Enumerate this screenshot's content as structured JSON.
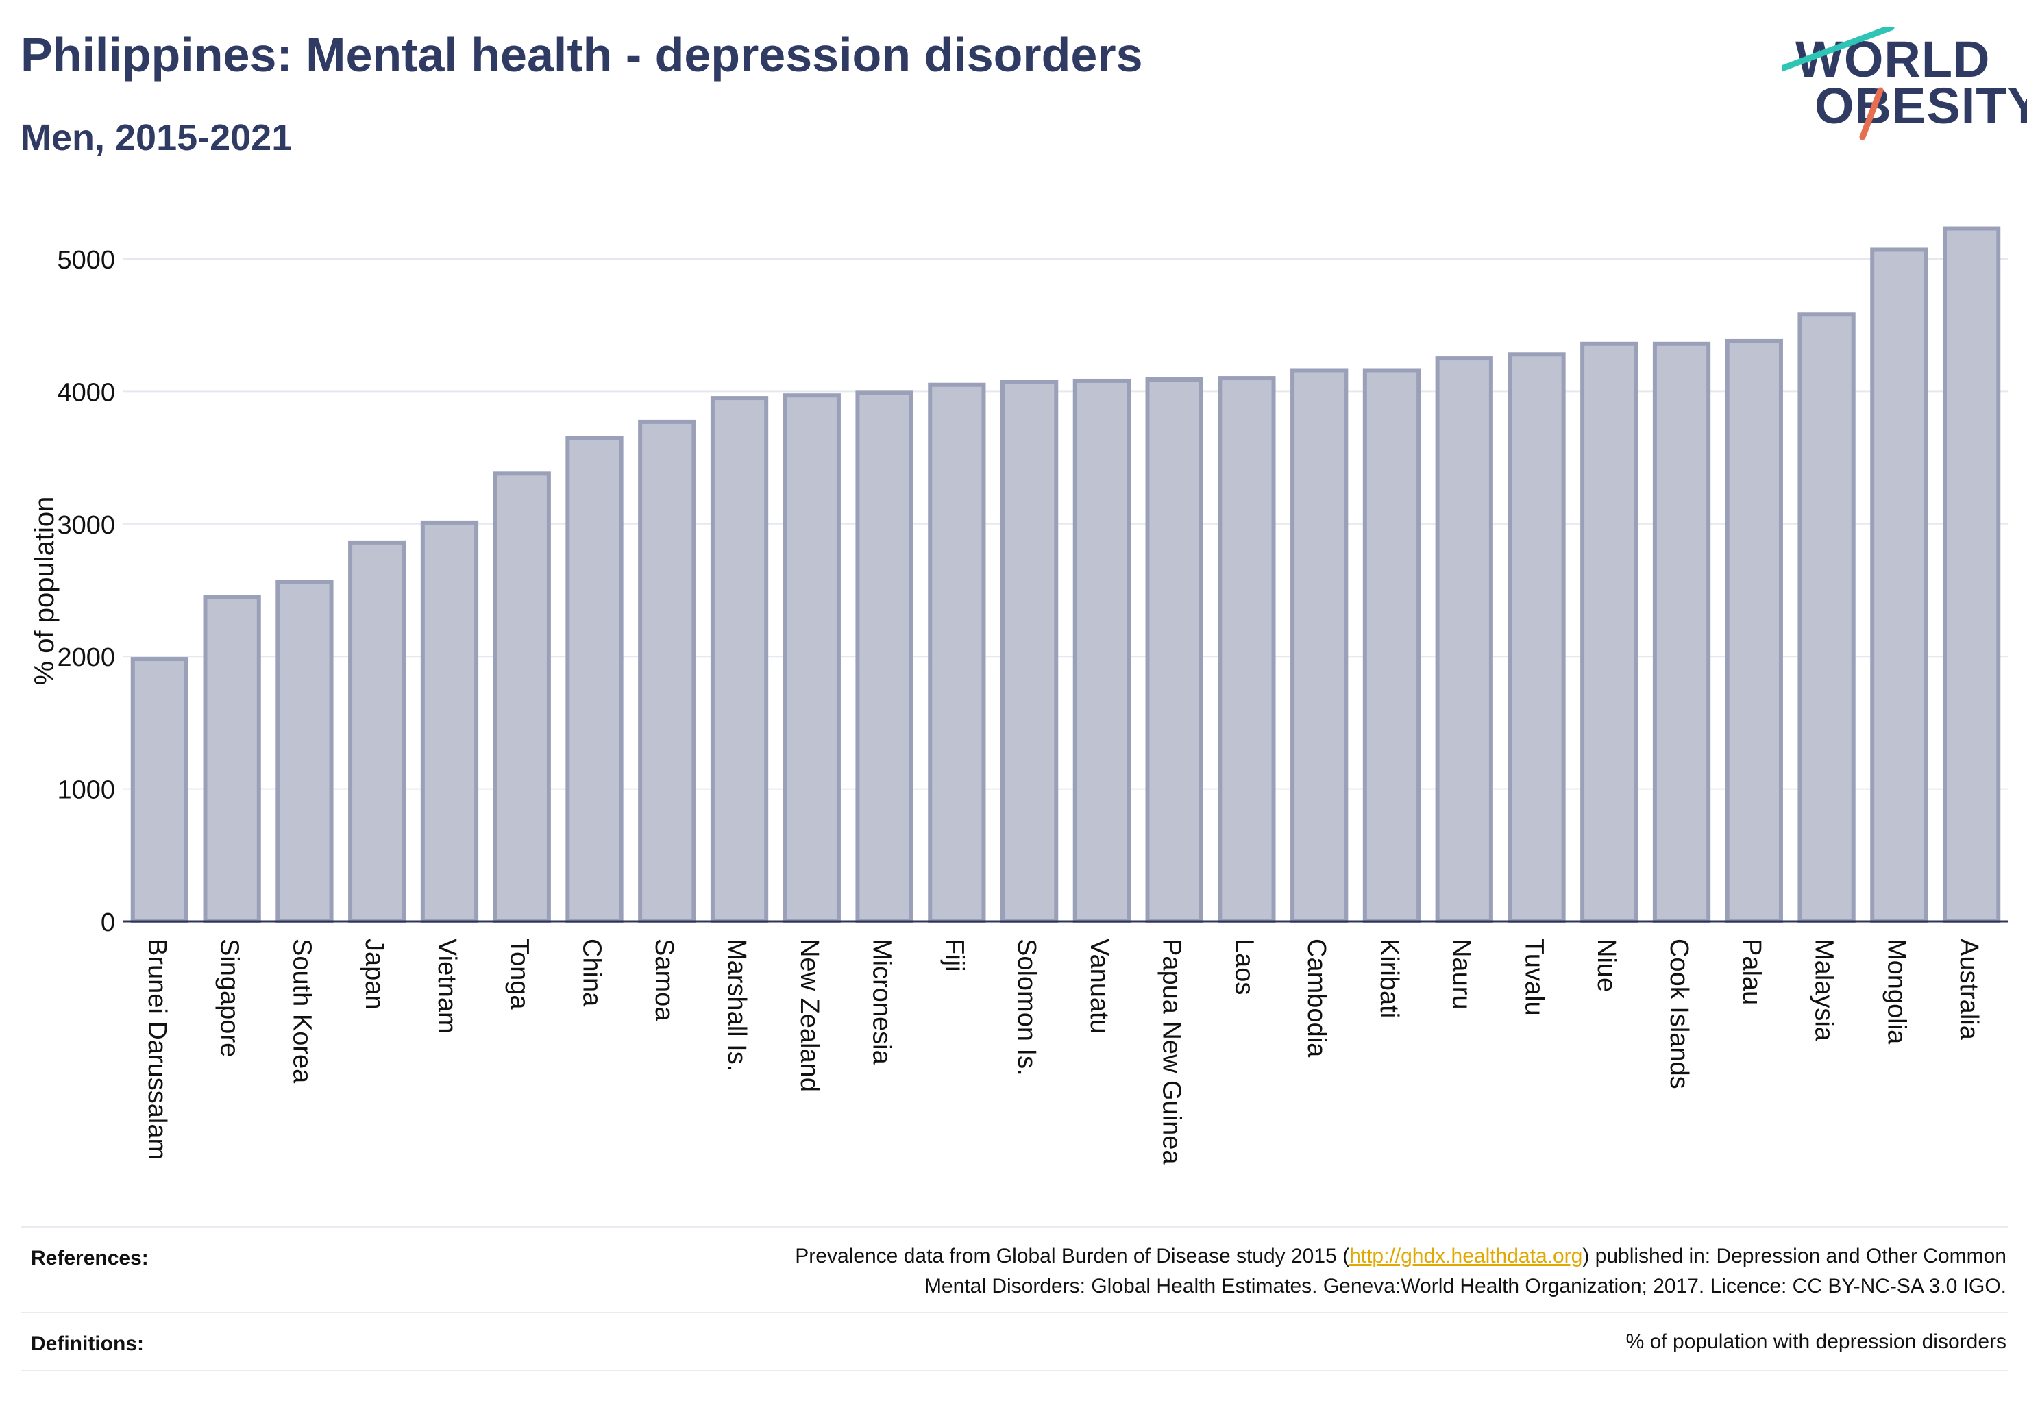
{
  "header": {
    "title": "Philippines: Mental health - depression disorders",
    "subtitle": "Men, 2015-2021"
  },
  "logo": {
    "line1": "WORLD",
    "line2": "OBESITY",
    "accent_colors": [
      "#2ec4b6",
      "#e76f51"
    ]
  },
  "colors": {
    "bar_fill": "#bfc3d1",
    "bar_stroke": "#9aa0b8",
    "text": "#2f3b63",
    "grid": "#e6e8ef",
    "link": "#e0a800"
  },
  "chart_data": {
    "type": "bar",
    "title": "",
    "xlabel": "",
    "ylabel": "% of population",
    "ylim": [
      0,
      5300
    ],
    "yticks": [
      0,
      1000,
      2000,
      3000,
      4000,
      5000
    ],
    "grid": true,
    "categories": [
      "Brunei Darussalam",
      "Singapore",
      "South Korea",
      "Japan",
      "Vietnam",
      "Tonga",
      "China",
      "Samoa",
      "Marshall Is.",
      "New Zealand",
      "Micronesia",
      "Fiji",
      "Solomon Is.",
      "Vanuatu",
      "Papua New Guinea",
      "Laos",
      "Cambodia",
      "Kiribati",
      "Nauru",
      "Tuvalu",
      "Niue",
      "Cook Islands",
      "Palau",
      "Malaysia",
      "Mongolia",
      "Australia"
    ],
    "values": [
      1980,
      2450,
      2560,
      2860,
      3010,
      3380,
      3650,
      3770,
      3950,
      3970,
      3990,
      4050,
      4070,
      4080,
      4090,
      4100,
      4160,
      4160,
      4250,
      4280,
      4360,
      4360,
      4380,
      4580,
      5070,
      5230
    ]
  },
  "footer": {
    "references_label": "References:",
    "references_line1_pre": "Prevalence data from Global Burden of Disease study 2015 (",
    "references_link": "http://ghdx.healthdata.org",
    "references_line1_post": ") published in: Depression and Other Common",
    "references_line2": "Mental Disorders: Global Health Estimates. Geneva:World Health Organization; 2017. Licence: CC BY-NC-SA 3.0 IGO.",
    "definitions_label": "Definitions:",
    "definitions_text": "% of population with depression disorders"
  }
}
